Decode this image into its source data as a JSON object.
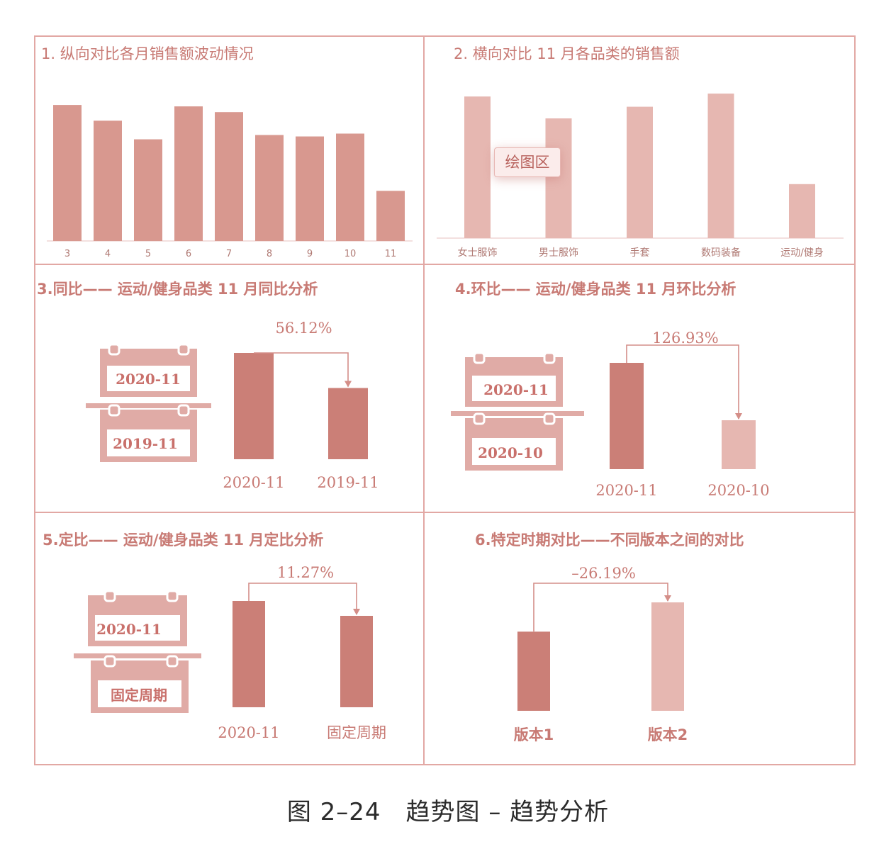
{
  "colors": {
    "border": "#e2a8a4",
    "bar_main": "#d8988f",
    "bar_light": "#e6b7b1",
    "bar_dark": "#cb7f77",
    "text": "#c87a74",
    "caption": "#2b2b2b"
  },
  "figure_caption": "图 2–24　趋势图 – 趋势分析",
  "panels": {
    "p1": {
      "title": "1. 纵向对比各月销售额波动情况"
    },
    "p2": {
      "title": "2. 横向对比 11 月各品类的销售额",
      "tag": "绘图区"
    },
    "p3": {
      "title": "3.同比——  运动/健身品类 11 月同比分析",
      "cal_top": "2020-11",
      "cal_bottom": "2019-11"
    },
    "p4": {
      "title": "4.环比——  运动/健身品类 11 月环比分析",
      "cal_top": "2020-11",
      "cal_bottom": "2020-10"
    },
    "p5": {
      "title": "5.定比——  运动/健身品类 11 月定比分析",
      "cal_top": "2020-11",
      "cal_bottom": "固定周期"
    },
    "p6": {
      "title": "6.特定时期对比——不同版本之间的对比"
    }
  },
  "chart_data": [
    {
      "type": "bar",
      "categories": [
        "3",
        "4",
        "5",
        "6",
        "7",
        "8",
        "9",
        "10",
        "11"
      ],
      "values": [
        95,
        84,
        71,
        94,
        90,
        74,
        73,
        75,
        35
      ],
      "ylim": [
        0,
        100
      ]
    },
    {
      "type": "bar",
      "categories": [
        "女士服饰",
        "男士服饰",
        "手套",
        "数码装备",
        "运动/健身"
      ],
      "values": [
        97,
        82,
        90,
        99,
        37
      ],
      "ylim": [
        0,
        100
      ]
    },
    {
      "type": "bar",
      "categories": [
        "2020-11",
        "2019-11"
      ],
      "values": [
        100,
        67
      ],
      "annotation": "56.12%",
      "ylim": [
        0,
        100
      ]
    },
    {
      "type": "bar",
      "categories": [
        "2020-11",
        "2020-10"
      ],
      "values": [
        100,
        46
      ],
      "annotation": "126.93%",
      "ylim": [
        0,
        100
      ]
    },
    {
      "type": "bar",
      "categories": [
        "2020-11",
        "固定周期"
      ],
      "values": [
        100,
        86
      ],
      "annotation": "11.27%",
      "ylim": [
        0,
        100
      ]
    },
    {
      "type": "bar",
      "categories": [
        "版本1",
        "版本2"
      ],
      "values": [
        73,
        100
      ],
      "annotation": "–26.19%",
      "ylim": [
        0,
        100
      ]
    }
  ]
}
